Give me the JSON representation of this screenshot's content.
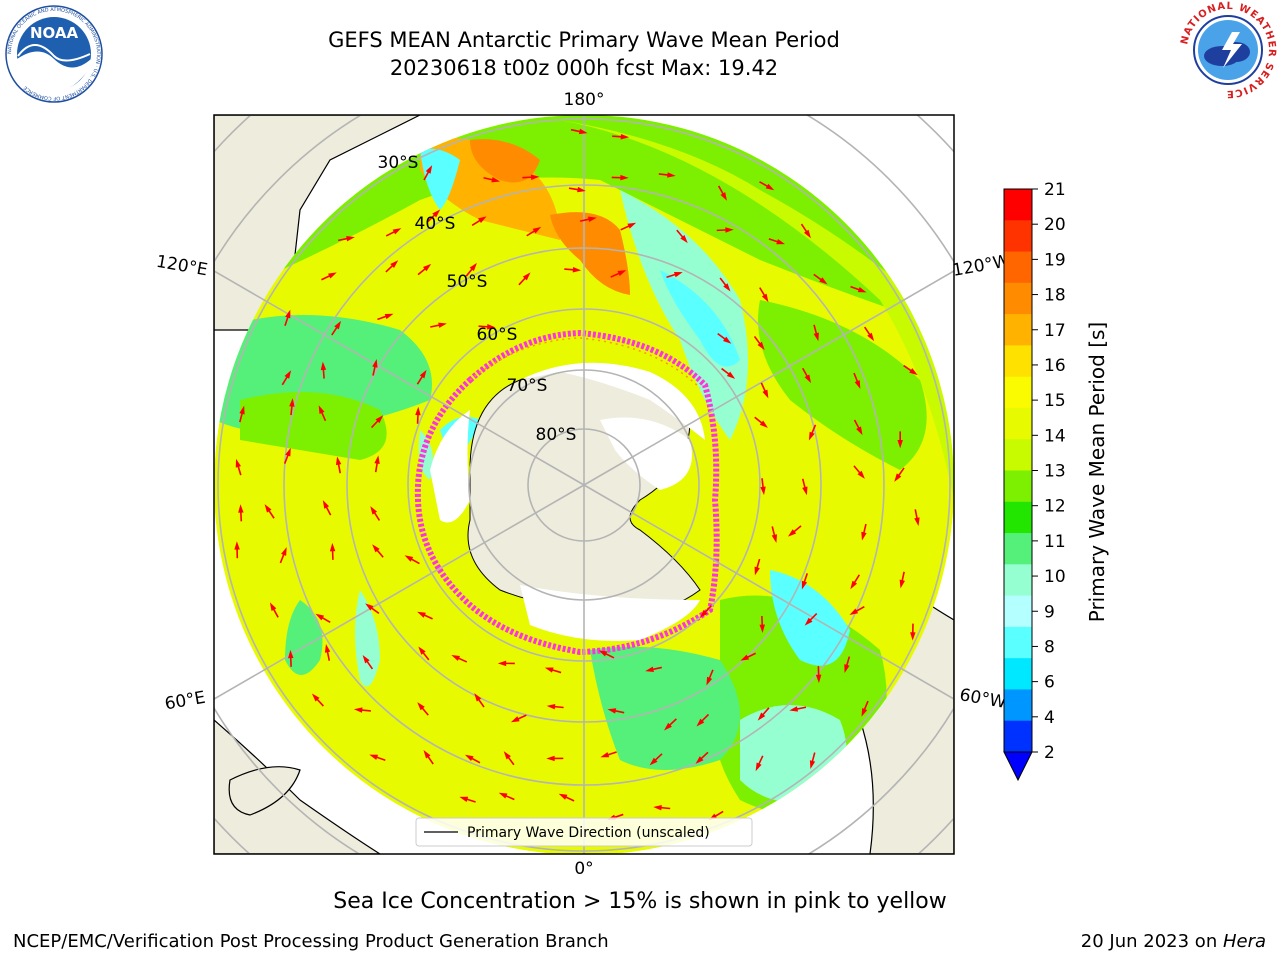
{
  "title": {
    "line1": "GEFS MEAN Antarctic Primary Wave Mean Period",
    "line2": "20230618 t00z 000h fcst   Max: 19.42"
  },
  "logos": {
    "left": {
      "name": "noaa-logo",
      "text": "NOAA",
      "ring_text": "NATIONAL OCEANIC AND ATMOSPHERIC ADMINISTRATION · U.S. DEPARTMENT OF COMMERCE"
    },
    "right": {
      "name": "nws-logo",
      "ring_text": "NATIONAL WEATHER SERVICE"
    }
  },
  "map": {
    "projection": "south-polar-stereographic",
    "longitude_labels": {
      "top": "180°",
      "bottom": "0°",
      "upper_left": "120°E",
      "upper_right": "120°W",
      "lower_left": "60°E",
      "lower_right": "60°W"
    },
    "latitude_labels": [
      "30°S",
      "40°S",
      "50°S",
      "60°S",
      "70°S",
      "80°S"
    ],
    "legend": {
      "label": "Primary Wave Direction (unscaled)"
    },
    "colors": {
      "land": "#eeecdd",
      "ice_shelf": "#ffffff",
      "sea_ice_edge": "#ff33dd",
      "arrow": "#ff0000",
      "grid": "#b4b4b4"
    }
  },
  "colorbar": {
    "label": "Primary Wave Mean Period [s]",
    "ticks": [
      "21",
      "20",
      "19",
      "18",
      "17",
      "16",
      "15",
      "14",
      "13",
      "12",
      "11",
      "10",
      "9",
      "8",
      "6",
      "4",
      "2"
    ],
    "bands_top_to_bottom": [
      "#ff0000",
      "#ff3300",
      "#ff6600",
      "#ff8c00",
      "#ffb300",
      "#ffe100",
      "#fafa00",
      "#e8fa00",
      "#c8fa00",
      "#7cf000",
      "#22e600",
      "#55f07a",
      "#96ffd2",
      "#b4ffff",
      "#5affff",
      "#00e8ff",
      "#0096ff",
      "#0032ff"
    ],
    "extend_triangle_color": "#0000ff"
  },
  "caption": "Sea Ice Concentration > 15% is shown in pink to yellow",
  "footer": {
    "left": "NCEP/EMC/Verification Post Processing Product Generation Branch",
    "right_date": "20 Jun 2023 on ",
    "right_host": "Hera"
  }
}
